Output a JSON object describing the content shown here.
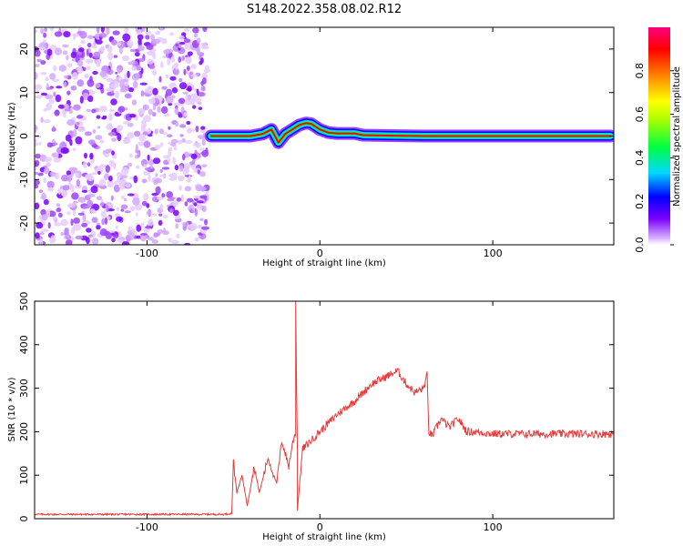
{
  "title": "S148.2022.358.08.02.R12",
  "chart_data": [
    {
      "type": "heatmap",
      "xlabel": "Height of straight line (km)",
      "ylabel": "Frequency (Hz)",
      "xlim": [
        -165,
        170
      ],
      "ylim": [
        -25,
        25
      ],
      "x_ticks": [
        -100,
        0,
        100
      ],
      "y_ticks": [
        -20,
        -10,
        0,
        10,
        20
      ],
      "noise_region_x": [
        -165,
        -65
      ],
      "trace": {
        "x": [
          -63,
          -58,
          -50,
          -40,
          -33,
          -28,
          -24,
          -20,
          -16,
          -12,
          -8,
          -5,
          0,
          5,
          10,
          20,
          25,
          40,
          60,
          80,
          100,
          120,
          140,
          160,
          168
        ],
        "freq": [
          0,
          0,
          0,
          0,
          0.5,
          1.5,
          -1.5,
          0.5,
          1.5,
          2.5,
          3,
          2.8,
          1.5,
          0.8,
          0.6,
          0.6,
          0.2,
          0.1,
          0,
          0,
          0,
          0,
          0,
          0,
          0
        ]
      },
      "colorbar": {
        "label": "Normalized spectral amplitude",
        "ticks": [
          0.0,
          0.2,
          0.4,
          0.6,
          0.8
        ]
      }
    },
    {
      "type": "line",
      "xlabel": "Height of straight line (km)",
      "ylabel": "SNR (10 * v/v)",
      "xlim": [
        -165,
        170
      ],
      "ylim": [
        0,
        500
      ],
      "x_ticks": [
        -100,
        0,
        100
      ],
      "y_ticks": [
        0,
        100,
        200,
        300,
        400,
        500
      ],
      "series": [
        {
          "color": "#e83a3a",
          "x": [
            -165,
            -120,
            -80,
            -56,
            -51,
            -50,
            -48,
            -45,
            -42,
            -38,
            -35,
            -30,
            -25,
            -22,
            -20,
            -18,
            -16,
            -14,
            -14,
            -13,
            -13,
            -10,
            -5,
            0,
            10,
            20,
            30,
            40,
            45,
            50,
            55,
            60,
            62,
            63,
            65,
            70,
            75,
            80,
            85,
            90,
            100,
            120,
            140,
            160,
            170
          ],
          "y": [
            10,
            10,
            10,
            10,
            12,
            130,
            60,
            100,
            30,
            120,
            60,
            140,
            80,
            180,
            150,
            120,
            170,
            200,
            500,
            150,
            20,
            160,
            180,
            200,
            240,
            270,
            310,
            330,
            340,
            310,
            290,
            300,
            330,
            200,
            190,
            230,
            210,
            230,
            200,
            200,
            195,
            195,
            195,
            195,
            195
          ]
        }
      ]
    }
  ]
}
